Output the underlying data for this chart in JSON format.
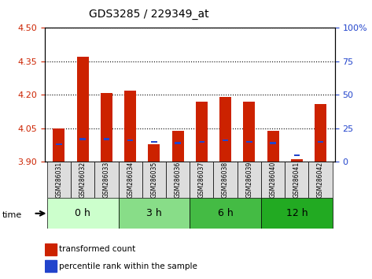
{
  "title": "GDS3285 / 229349_at",
  "samples": [
    "GSM286031",
    "GSM286032",
    "GSM286033",
    "GSM286034",
    "GSM286035",
    "GSM286036",
    "GSM286037",
    "GSM286038",
    "GSM286039",
    "GSM286040",
    "GSM286041",
    "GSM286042"
  ],
  "transformed_count": [
    4.05,
    4.37,
    4.21,
    4.22,
    3.98,
    4.04,
    4.17,
    4.19,
    4.17,
    4.04,
    3.91,
    4.16
  ],
  "percentile_rank": [
    13,
    17,
    17,
    16,
    15,
    14,
    15,
    16,
    15,
    14,
    5,
    15
  ],
  "ylim_left": [
    3.9,
    4.5
  ],
  "ylim_right": [
    0,
    100
  ],
  "yticks_left": [
    3.9,
    4.05,
    4.2,
    4.35,
    4.5
  ],
  "yticks_right": [
    0,
    25,
    50,
    75,
    100
  ],
  "groups": [
    {
      "label": "0 h",
      "samples": [
        0,
        1,
        2
      ],
      "color": "#ccffcc"
    },
    {
      "label": "3 h",
      "samples": [
        3,
        4,
        5
      ],
      "color": "#99ee99"
    },
    {
      "label": "6 h",
      "samples": [
        6,
        7,
        8
      ],
      "color": "#66dd66"
    },
    {
      "label": "12 h",
      "samples": [
        9,
        10,
        11
      ],
      "color": "#33cc33"
    }
  ],
  "bar_color_red": "#cc2200",
  "bar_color_blue": "#2244cc",
  "bar_width": 0.5,
  "base_value": 3.9,
  "grid_color": "#000000",
  "title_color": "#000000",
  "left_axis_color": "#cc2200",
  "right_axis_color": "#2244cc",
  "bg_plot": "#ffffff",
  "bg_sample": "#dddddd",
  "bg_group_light": "#ccffcc",
  "bg_group_dark": "#44cc44",
  "time_label": "time",
  "legend_red": "transformed count",
  "legend_blue": "percentile rank within the sample"
}
